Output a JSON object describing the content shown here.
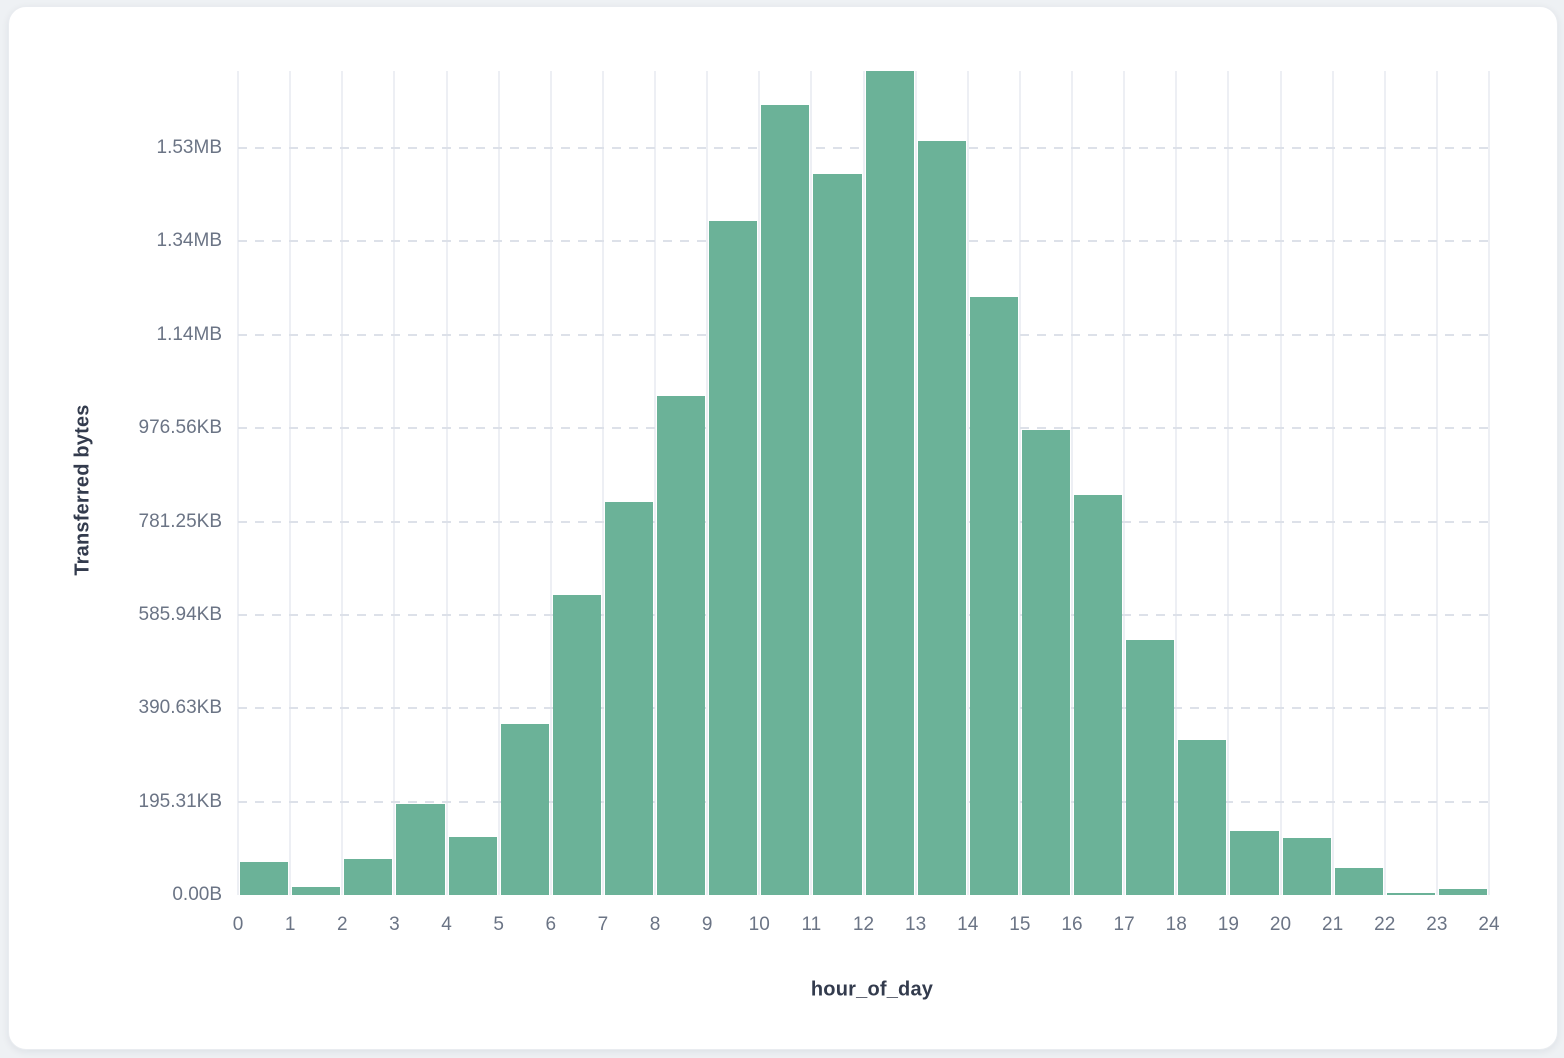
{
  "page": {
    "background": "#eef1f4"
  },
  "card": {
    "background": "#ffffff"
  },
  "colors": {
    "bar": "#6BB298",
    "vertical_gridline": "#edeff4",
    "horizontal_gridline": "#dde1e9",
    "tick_text": "#6b7485",
    "axis_title_text": "#333b4d"
  },
  "chart_data": {
    "type": "bar",
    "title": "",
    "xlabel": "hour_of_day",
    "ylabel": "Transferred bytes",
    "x_range": [
      0,
      24
    ],
    "x_ticks": [
      "0",
      "1",
      "2",
      "3",
      "4",
      "5",
      "6",
      "7",
      "8",
      "9",
      "10",
      "11",
      "12",
      "13",
      "14",
      "15",
      "16",
      "17",
      "18",
      "19",
      "20",
      "21",
      "22",
      "23",
      "24"
    ],
    "bin_width_hours": 1,
    "values_bytes": [
      71000,
      17000,
      77000,
      195000,
      124000,
      367000,
      643000,
      841000,
      1068000,
      1443000,
      1692000,
      1544000,
      1765000,
      1615000,
      1280000,
      997000,
      856000,
      547000,
      332000,
      137000,
      122000,
      58000,
      4000,
      13000
    ],
    "y_ticks": [
      {
        "label": "0.00B",
        "bytes": 0
      },
      {
        "label": "195.31KB",
        "bytes": 200000
      },
      {
        "label": "390.63KB",
        "bytes": 400000
      },
      {
        "label": "585.94KB",
        "bytes": 600000
      },
      {
        "label": "781.25KB",
        "bytes": 800000
      },
      {
        "label": "976.56KB",
        "bytes": 1000000
      },
      {
        "label": "1.14MB",
        "bytes": 1200000
      },
      {
        "label": "1.34MB",
        "bytes": 1400000
      },
      {
        "label": "1.53MB",
        "bytes": 1600000
      }
    ],
    "ylim": [
      0,
      1765000
    ],
    "grid": true,
    "legend": "none"
  }
}
